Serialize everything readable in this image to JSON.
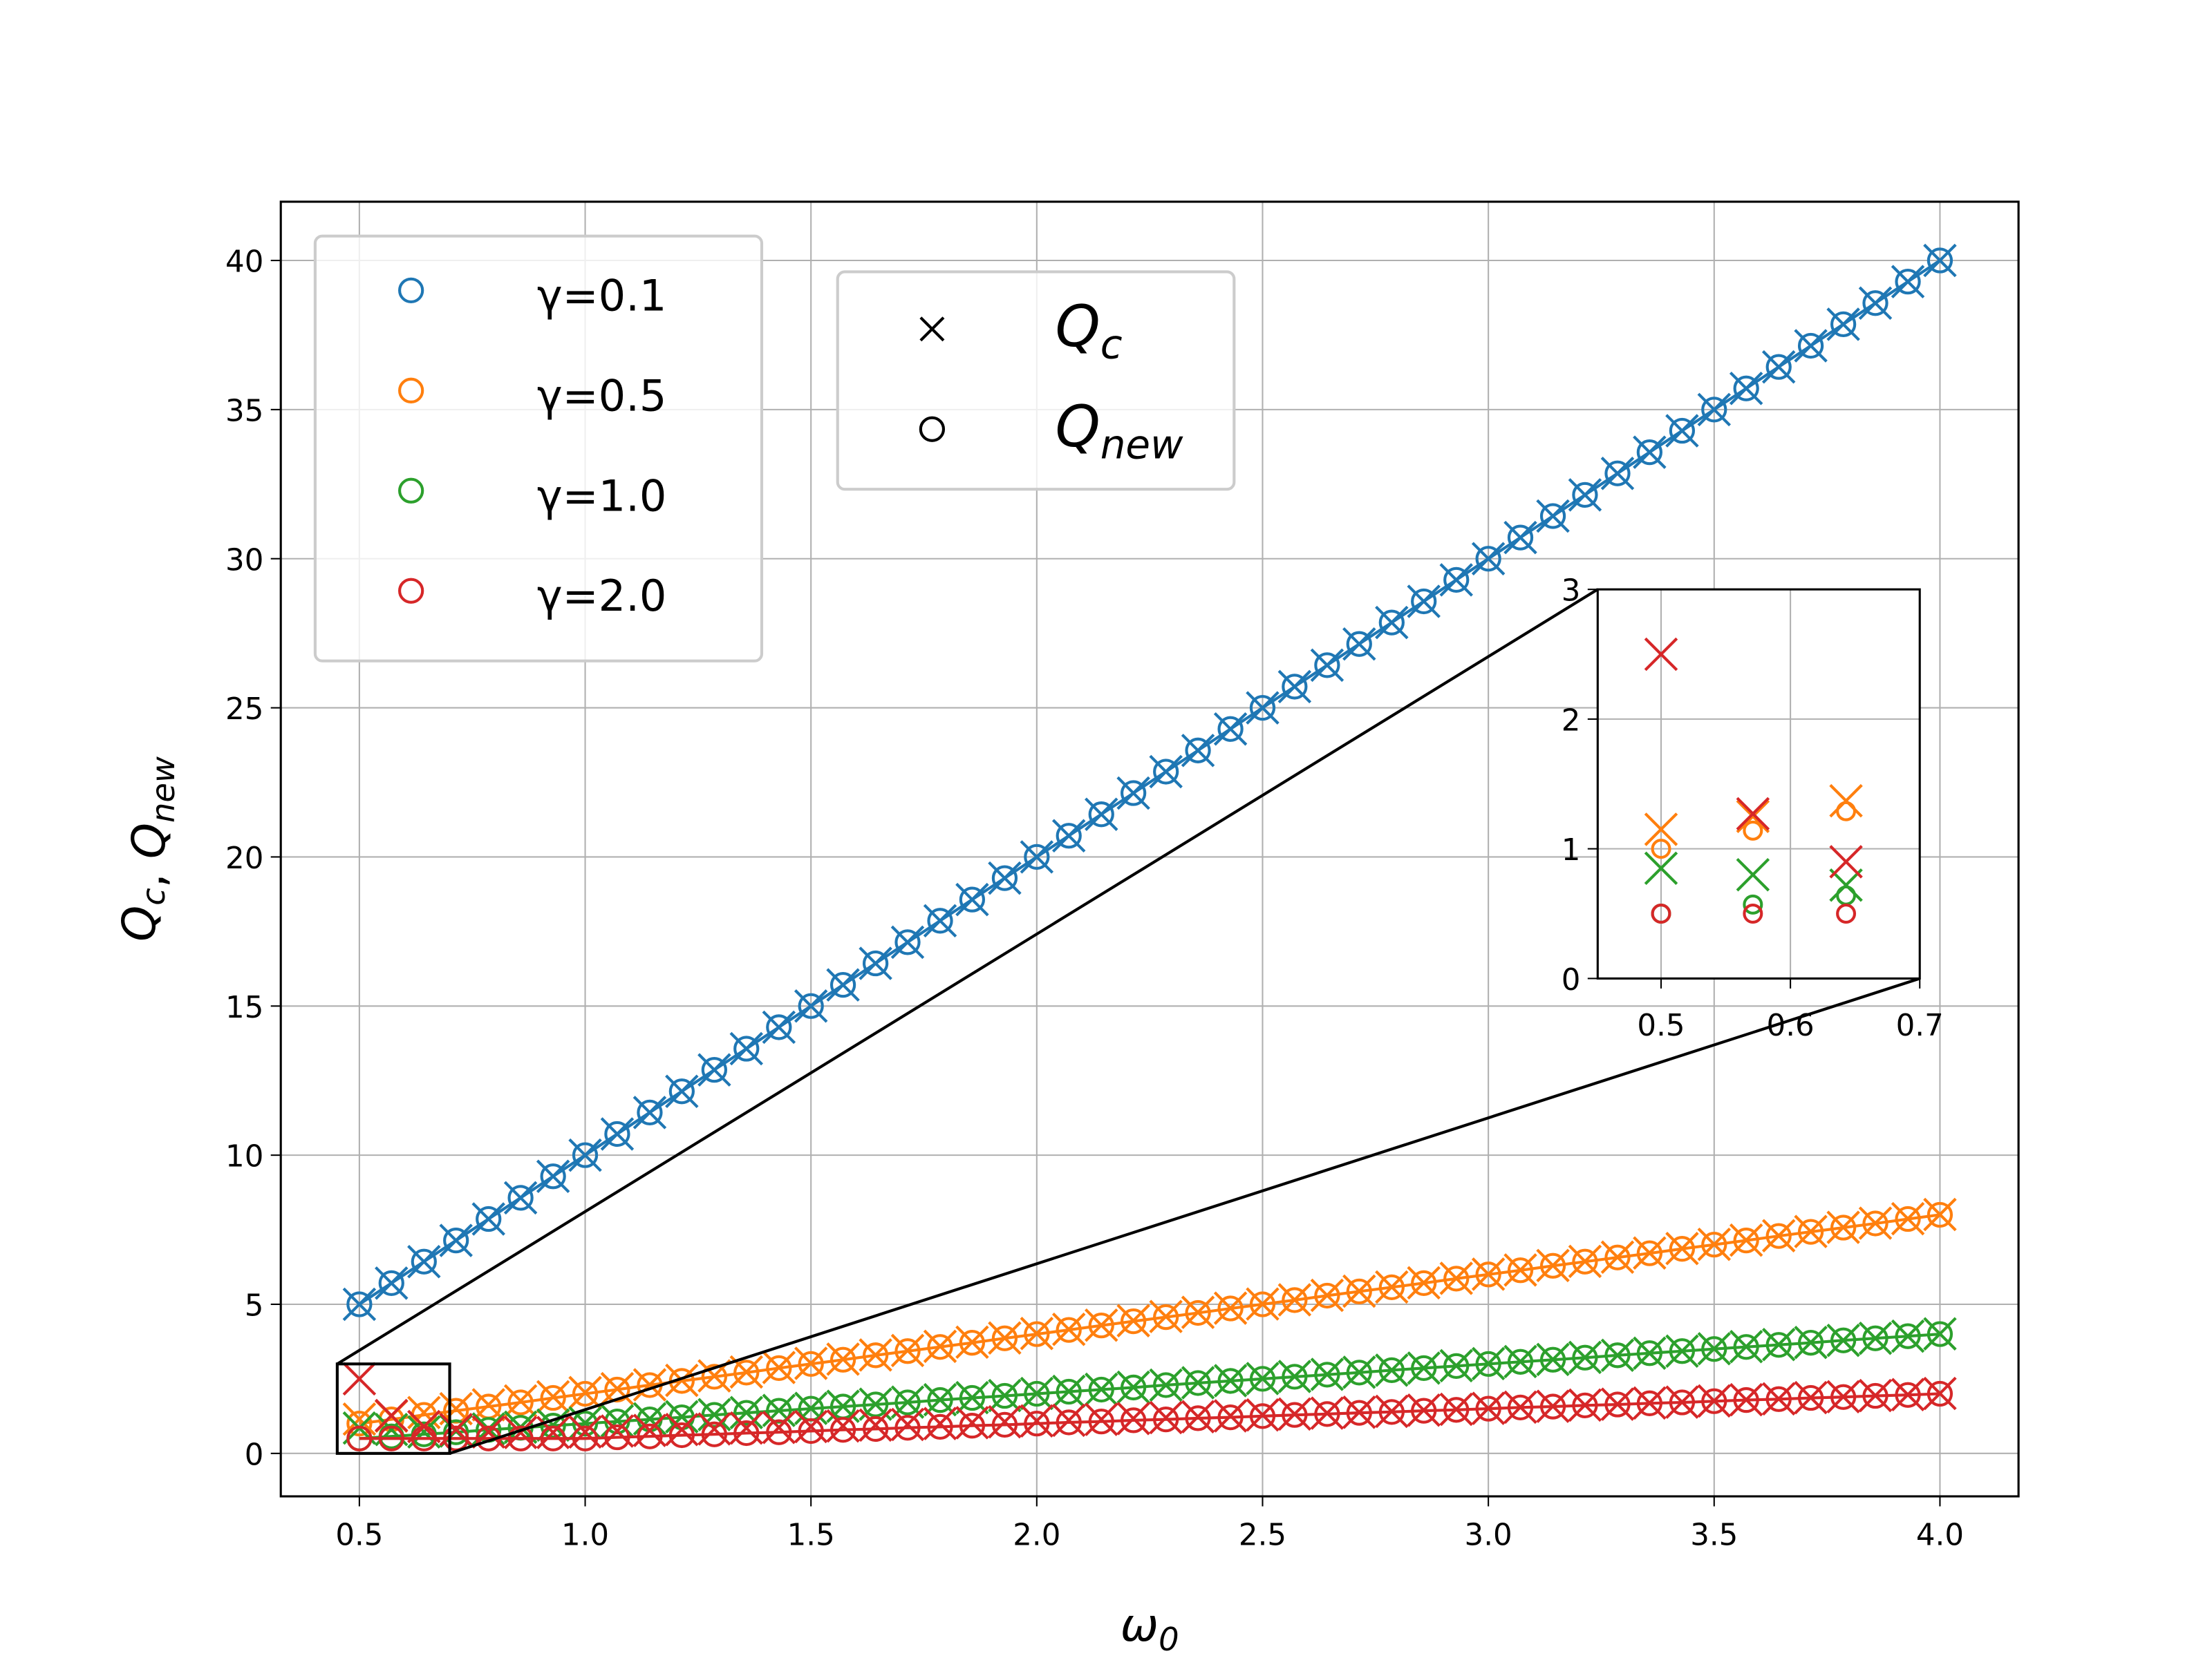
{
  "chart_data": {
    "type": "scatter",
    "x": [
      0.5,
      0.571,
      0.643,
      0.714,
      0.786,
      0.857,
      0.929,
      1.0,
      1.071,
      1.143,
      1.214,
      1.286,
      1.357,
      1.429,
      1.5,
      1.571,
      1.643,
      1.714,
      1.786,
      1.857,
      1.929,
      2.0,
      2.071,
      2.143,
      2.214,
      2.286,
      2.357,
      2.429,
      2.5,
      2.571,
      2.643,
      2.714,
      2.786,
      2.857,
      2.929,
      3.0,
      3.071,
      3.143,
      3.214,
      3.286,
      3.357,
      3.429,
      3.5,
      3.571,
      3.643,
      3.714,
      3.786,
      3.857,
      3.929,
      4.0
    ],
    "series": [
      {
        "name": "γ=0.1",
        "color": "#1f77b4",
        "q_new": [
          5,
          5.71,
          6.43,
          7.14,
          7.86,
          8.57,
          9.29,
          10,
          10.71,
          11.43,
          12.14,
          12.86,
          13.57,
          14.29,
          15,
          15.71,
          16.43,
          17.14,
          17.86,
          18.57,
          19.29,
          20,
          20.71,
          21.43,
          22.14,
          22.86,
          23.57,
          24.29,
          25,
          25.71,
          26.43,
          27.14,
          27.86,
          28.57,
          29.29,
          30,
          30.71,
          31.43,
          32.14,
          32.86,
          33.57,
          34.29,
          35,
          35.71,
          36.43,
          37.14,
          37.86,
          38.57,
          39.29,
          40
        ],
        "q_c": [
          5,
          5.71,
          6.43,
          7.14,
          7.86,
          8.57,
          9.29,
          10,
          10.71,
          11.43,
          12.14,
          12.86,
          13.57,
          14.29,
          15,
          15.71,
          16.43,
          17.14,
          17.86,
          18.57,
          19.29,
          20,
          20.71,
          21.43,
          22.14,
          22.86,
          23.57,
          24.29,
          25,
          25.71,
          26.43,
          27.14,
          27.86,
          28.57,
          29.29,
          30,
          30.71,
          31.43,
          32.14,
          32.86,
          33.57,
          34.29,
          35,
          35.71,
          36.43,
          37.14,
          37.86,
          38.57,
          39.29,
          40
        ]
      },
      {
        "name": "γ=0.5",
        "color": "#ff7f0e",
        "q_new": [
          1,
          1.14,
          1.29,
          1.43,
          1.57,
          1.71,
          1.86,
          2,
          2.14,
          2.29,
          2.43,
          2.57,
          2.71,
          2.86,
          3,
          3.14,
          3.29,
          3.43,
          3.57,
          3.71,
          3.86,
          4,
          4.14,
          4.29,
          4.43,
          4.57,
          4.71,
          4.86,
          5,
          5.14,
          5.29,
          5.43,
          5.57,
          5.71,
          5.86,
          6,
          6.14,
          6.29,
          6.43,
          6.57,
          6.71,
          6.86,
          7,
          7.14,
          7.29,
          7.43,
          7.57,
          7.71,
          7.86,
          8
        ],
        "q_c": [
          1.15,
          1.25,
          1.37,
          1.5,
          1.63,
          1.76,
          1.9,
          2.04,
          2.17,
          2.3,
          2.45,
          2.6,
          2.73,
          2.88,
          3.02,
          3.16,
          3.3,
          3.45,
          3.59,
          3.73,
          3.87,
          4.02,
          4.16,
          4.3,
          4.45,
          4.59,
          4.73,
          4.87,
          5.01,
          5.15,
          5.3,
          5.44,
          5.58,
          5.72,
          5.87,
          6.01,
          6.15,
          6.3,
          6.44,
          6.58,
          6.72,
          6.87,
          7.01,
          7.15,
          7.3,
          7.44,
          7.58,
          7.72,
          7.87,
          8.01
        ]
      },
      {
        "name": "γ=1.0",
        "color": "#2ca02c",
        "q_new": [
          0.5,
          0.57,
          0.64,
          0.71,
          0.79,
          0.86,
          0.93,
          1,
          1.07,
          1.14,
          1.21,
          1.29,
          1.36,
          1.43,
          1.5,
          1.57,
          1.64,
          1.71,
          1.79,
          1.86,
          1.93,
          2,
          2.07,
          2.14,
          2.21,
          2.29,
          2.36,
          2.43,
          2.5,
          2.57,
          2.64,
          2.71,
          2.79,
          2.86,
          2.93,
          3,
          3.07,
          3.14,
          3.21,
          3.29,
          3.36,
          3.43,
          3.5,
          3.57,
          3.64,
          3.71,
          3.79,
          3.86,
          3.93,
          4
        ],
        "q_c": [
          0.85,
          0.8,
          0.72,
          0.75,
          0.82,
          0.88,
          0.95,
          1.02,
          1.09,
          1.16,
          1.23,
          1.3,
          1.37,
          1.44,
          1.51,
          1.58,
          1.65,
          1.72,
          1.8,
          1.87,
          1.94,
          2.01,
          2.08,
          2.15,
          2.22,
          2.29,
          2.37,
          2.44,
          2.51,
          2.58,
          2.65,
          2.72,
          2.79,
          2.86,
          2.94,
          3.01,
          3.08,
          3.15,
          3.22,
          3.29,
          3.36,
          3.43,
          3.51,
          3.58,
          3.65,
          3.72,
          3.79,
          3.86,
          3.93,
          4.01
        ]
      },
      {
        "name": "γ=2.0",
        "color": "#d62728",
        "q_new": [
          0.5,
          0.5,
          0.5,
          0.5,
          0.5,
          0.5,
          0.5,
          0.5,
          0.54,
          0.57,
          0.61,
          0.64,
          0.68,
          0.71,
          0.75,
          0.79,
          0.82,
          0.86,
          0.89,
          0.93,
          0.96,
          1,
          1.04,
          1.07,
          1.11,
          1.14,
          1.18,
          1.21,
          1.25,
          1.29,
          1.32,
          1.36,
          1.39,
          1.43,
          1.46,
          1.5,
          1.54,
          1.57,
          1.61,
          1.64,
          1.68,
          1.71,
          1.75,
          1.79,
          1.82,
          1.86,
          1.89,
          1.93,
          1.96,
          2
        ],
        "q_c": [
          2.5,
          1.27,
          0.9,
          0.8,
          0.72,
          0.7,
          0.7,
          0.72,
          0.75,
          0.77,
          0.8,
          0.82,
          0.85,
          0.87,
          0.9,
          0.92,
          0.95,
          0.97,
          1,
          1.03,
          1.06,
          1.09,
          1.11,
          1.14,
          1.17,
          1.2,
          1.23,
          1.26,
          1.29,
          1.32,
          1.35,
          1.38,
          1.41,
          1.45,
          1.48,
          1.51,
          1.55,
          1.58,
          1.62,
          1.65,
          1.69,
          1.72,
          1.76,
          1.8,
          1.83,
          1.87,
          1.9,
          1.94,
          1.97,
          2.01
        ]
      }
    ],
    "marker_legend": [
      {
        "symbol": "Q",
        "subscript": "c"
      },
      {
        "symbol": "Q",
        "subscript": "new"
      }
    ],
    "xlabel": {
      "symbol": "ω",
      "subscript": "0"
    },
    "ylabel": [
      {
        "symbol": "Q",
        "subscript": "c"
      },
      ", ",
      {
        "symbol": "Q",
        "subscript": "new"
      }
    ],
    "xlim": [
      0.326,
      4.174
    ],
    "ylim": [
      -1.44,
      41.97
    ],
    "xticks": [
      {
        "value": 0.5,
        "label": "0.5"
      },
      {
        "value": 1,
        "label": "1.0"
      },
      {
        "value": 1.5,
        "label": "1.5"
      },
      {
        "value": 2,
        "label": "2.0"
      },
      {
        "value": 2.5,
        "label": "2.5"
      },
      {
        "value": 3,
        "label": "3.0"
      },
      {
        "value": 3.5,
        "label": "3.5"
      },
      {
        "value": 4,
        "label": "4.0"
      }
    ],
    "yticks": [
      0,
      5,
      10,
      15,
      20,
      25,
      30,
      35,
      40
    ],
    "grid": true,
    "inset": {
      "xlim": [
        0.451,
        0.7
      ],
      "ylim": [
        0,
        3
      ],
      "xticks": [
        0.5,
        0.6,
        0.7
      ],
      "yticks": [
        0,
        1,
        2,
        3
      ],
      "grid": true
    }
  }
}
